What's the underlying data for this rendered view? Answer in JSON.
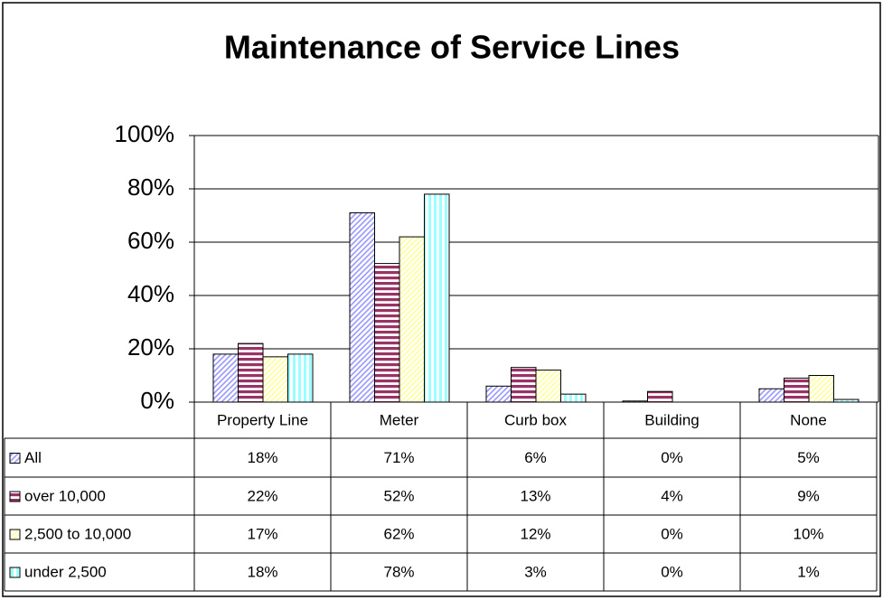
{
  "chart_data": {
    "type": "bar",
    "title": "Maintenance of Service Lines",
    "categories": [
      "Property Line",
      "Meter",
      "Curb box",
      "Building",
      "None"
    ],
    "series": [
      {
        "name": "All",
        "color": "#9999ff",
        "values": [
          18,
          71,
          6,
          0.4,
          5
        ],
        "value_labels": [
          "18%",
          "71%",
          "6%",
          "0%",
          "5%"
        ]
      },
      {
        "name": "over 10,000",
        "color": "#993366",
        "values": [
          22,
          52,
          13,
          4,
          9
        ],
        "value_labels": [
          "22%",
          "52%",
          "13%",
          "4%",
          "9%"
        ]
      },
      {
        "name": "2,500 to 10,000",
        "color": "#ffff99",
        "values": [
          17,
          62,
          12,
          0,
          10
        ],
        "value_labels": [
          "17%",
          "62%",
          "12%",
          "0%",
          "10%"
        ]
      },
      {
        "name": "under 2,500",
        "color": "#99ffff",
        "values": [
          18,
          78,
          3,
          0,
          1
        ],
        "value_labels": [
          "18%",
          "78%",
          "3%",
          "0%",
          "1%"
        ]
      }
    ],
    "ylim": [
      0,
      100
    ],
    "yticks": [
      {
        "value": 0,
        "label": "0%"
      },
      {
        "value": 20,
        "label": "20%"
      },
      {
        "value": 40,
        "label": "40%"
      },
      {
        "value": 60,
        "label": "60%"
      },
      {
        "value": 80,
        "label": "80%"
      },
      {
        "value": 100,
        "label": "100%"
      }
    ],
    "grid": true
  }
}
